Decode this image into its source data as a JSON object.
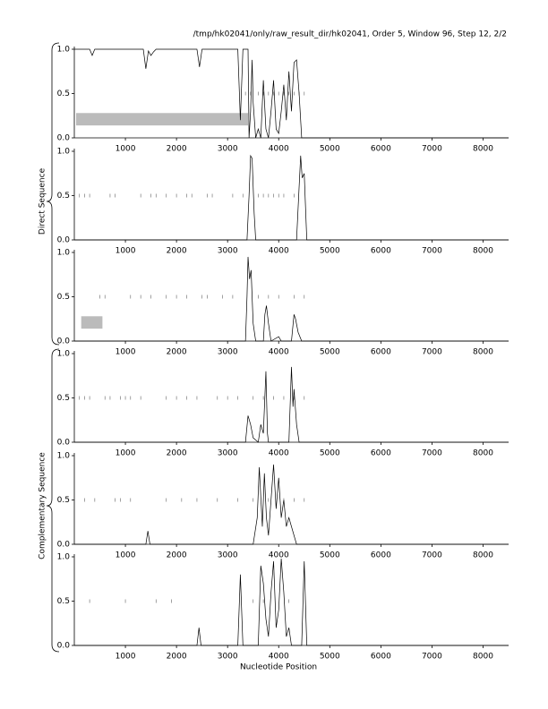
{
  "title": "/tmp/hk02041/only/raw_result_dir/hk02041, Order 5, Window 96, Step 12, 2/2",
  "xlabel": "Nucleotide Position",
  "group_labels": [
    "Direct Sequence",
    "Complementary Sequence"
  ],
  "chart_data": [
    {
      "type": "line",
      "color": "#000000",
      "xlim": [
        0,
        8500
      ],
      "ylim": [
        0,
        1
      ],
      "xticks": [
        1000,
        2000,
        3000,
        4000,
        5000,
        6000,
        7000,
        8000
      ],
      "yticks": [
        {
          "value": 0,
          "label": "0.0"
        },
        {
          "value": 0.5,
          "label": "0.5"
        },
        {
          "value": 1,
          "label": "1.0"
        }
      ],
      "x": [
        0,
        300,
        350,
        400,
        450,
        1350,
        1400,
        1450,
        1500,
        1550,
        1600,
        2400,
        2450,
        2500,
        3200,
        3250,
        3300,
        3400,
        3420,
        3450,
        3480,
        3500,
        3550,
        3600,
        3650,
        3700,
        3750,
        3800,
        3850,
        3900,
        3950,
        4000,
        4050,
        4100,
        4150,
        4200,
        4250,
        4300,
        4350,
        4400,
        4450,
        4500,
        8500
      ],
      "values": [
        1,
        1,
        0.93,
        1,
        1,
        1,
        0.78,
        0.98,
        0.93,
        0.97,
        1,
        1,
        0.8,
        1,
        1,
        0.2,
        1,
        1,
        0,
        0.3,
        0.88,
        0.4,
        0,
        0.1,
        0,
        0.65,
        0.1,
        0,
        0.3,
        0.65,
        0.1,
        0.05,
        0.3,
        0.6,
        0.2,
        0.75,
        0.3,
        0.85,
        0.88,
        0.5,
        0,
        0,
        0
      ],
      "markers": {
        "level": 0.5,
        "x": [
          3350,
          3450,
          3600,
          3700,
          3800,
          3900,
          4000,
          4100,
          4200,
          4300,
          4400,
          4500
        ]
      },
      "regions": [
        {
          "start": 0,
          "end": 3400,
          "low": 0.14,
          "high": 0.28
        }
      ]
    },
    {
      "type": "line",
      "color": "#000000",
      "xlim": [
        0,
        8500
      ],
      "ylim": [
        0,
        1
      ],
      "xticks": [
        1000,
        2000,
        3000,
        4000,
        5000,
        6000,
        7000,
        8000
      ],
      "yticks": [
        {
          "value": 0,
          "label": "0.0"
        },
        {
          "value": 0.5,
          "label": "0.5"
        },
        {
          "value": 1,
          "label": "1.0"
        }
      ],
      "x": [
        0,
        3380,
        3420,
        3450,
        3480,
        3520,
        3550,
        4350,
        4400,
        4430,
        4460,
        4500,
        4550,
        8500
      ],
      "values": [
        0,
        0,
        0.5,
        0.95,
        0.92,
        0.3,
        0,
        0,
        0.6,
        0.95,
        0.7,
        0.75,
        0,
        0
      ],
      "markers": {
        "level": 0.5,
        "x": [
          100,
          200,
          300,
          700,
          800,
          1300,
          1500,
          1600,
          1800,
          2000,
          2200,
          2300,
          2600,
          2700,
          3100,
          3300,
          3600,
          3700,
          3800,
          3900,
          4000,
          4100,
          4300
        ]
      },
      "regions": []
    },
    {
      "type": "line",
      "color": "#000000",
      "xlim": [
        0,
        8500
      ],
      "ylim": [
        0,
        1
      ],
      "xticks": [
        1000,
        2000,
        3000,
        4000,
        5000,
        6000,
        7000,
        8000
      ],
      "yticks": [
        {
          "value": 0,
          "label": "0.0"
        },
        {
          "value": 0.5,
          "label": "0.5"
        },
        {
          "value": 1,
          "label": "1.0"
        }
      ],
      "x": [
        0,
        3350,
        3380,
        3400,
        3430,
        3460,
        3500,
        3550,
        3700,
        3730,
        3760,
        3800,
        3850,
        4000,
        4050,
        4250,
        4300,
        4330,
        4380,
        4450,
        8500
      ],
      "values": [
        0,
        0,
        0.5,
        0.95,
        0.7,
        0.8,
        0.2,
        0,
        0,
        0.3,
        0.4,
        0.2,
        0,
        0.05,
        0,
        0,
        0.3,
        0.25,
        0.1,
        0,
        0
      ],
      "markers": {
        "level": 0.5,
        "x": [
          500,
          600,
          1100,
          1300,
          1500,
          1800,
          2000,
          2200,
          2500,
          2600,
          2900,
          3100,
          3600,
          3800,
          4000,
          4300,
          4500
        ]
      },
      "regions": [
        {
          "start": 100,
          "end": 550,
          "low": 0.14,
          "high": 0.28
        }
      ]
    },
    {
      "type": "line",
      "color": "#000000",
      "xlim": [
        0,
        8500
      ],
      "ylim": [
        0,
        1
      ],
      "xticks": [
        1000,
        2000,
        3000,
        4000,
        5000,
        6000,
        7000,
        8000
      ],
      "yticks": [
        {
          "value": 0,
          "label": "0.0"
        },
        {
          "value": 0.5,
          "label": "0.5"
        },
        {
          "value": 1,
          "label": "1.0"
        }
      ],
      "x": [
        0,
        3350,
        3400,
        3450,
        3500,
        3600,
        3650,
        3700,
        3750,
        3780,
        3800,
        3850,
        4200,
        4250,
        4280,
        4300,
        4350,
        4400,
        8500
      ],
      "values": [
        0,
        0,
        0.3,
        0.2,
        0.05,
        0,
        0.2,
        0.1,
        0.8,
        0.1,
        0,
        0,
        0,
        0.85,
        0.4,
        0.6,
        0.2,
        0,
        0
      ],
      "markers": {
        "level": 0.5,
        "x": [
          100,
          200,
          300,
          600,
          700,
          900,
          1000,
          1100,
          1300,
          1800,
          2000,
          2200,
          2400,
          2800,
          3000,
          3200,
          3500,
          3700,
          3900,
          4100,
          4300,
          4500
        ]
      },
      "regions": []
    },
    {
      "type": "line",
      "color": "#000000",
      "xlim": [
        0,
        8500
      ],
      "ylim": [
        0,
        1
      ],
      "xticks": [
        1000,
        2000,
        3000,
        4000,
        5000,
        6000,
        7000,
        8000
      ],
      "yticks": [
        {
          "value": 0,
          "label": "0.0"
        },
        {
          "value": 0.5,
          "label": "0.5"
        },
        {
          "value": 1,
          "label": "1.0"
        }
      ],
      "x": [
        0,
        1400,
        1440,
        1480,
        3500,
        3580,
        3620,
        3680,
        3720,
        3760,
        3800,
        3850,
        3900,
        3950,
        4000,
        4050,
        4100,
        4150,
        4200,
        4300,
        4350,
        8500
      ],
      "values": [
        0,
        0,
        0.15,
        0,
        0,
        0.3,
        0.87,
        0.2,
        0.8,
        0.3,
        0.1,
        0.5,
        0.9,
        0.4,
        0.75,
        0.3,
        0.5,
        0.2,
        0.3,
        0.1,
        0,
        0
      ],
      "markers": {
        "level": 0.5,
        "x": [
          200,
          400,
          800,
          900,
          1100,
          1800,
          2100,
          2400,
          2800,
          3200,
          3500,
          3800,
          4100,
          4300,
          4500
        ]
      },
      "regions": []
    },
    {
      "type": "line",
      "color": "#000000",
      "xlim": [
        0,
        8500
      ],
      "ylim": [
        0,
        1
      ],
      "xticks": [
        1000,
        2000,
        3000,
        4000,
        5000,
        6000,
        7000,
        8000
      ],
      "yticks": [
        {
          "value": 0,
          "label": "0.0"
        },
        {
          "value": 0.5,
          "label": "0.5"
        },
        {
          "value": 1,
          "label": "1.0"
        }
      ],
      "x": [
        0,
        2400,
        2440,
        2480,
        3200,
        3250,
        3300,
        3600,
        3650,
        3700,
        3750,
        3800,
        3850,
        3900,
        3950,
        4000,
        4050,
        4100,
        4150,
        4200,
        4250,
        4450,
        4500,
        4550,
        8500
      ],
      "values": [
        0,
        0,
        0.2,
        0,
        0,
        0.8,
        0,
        0,
        0.9,
        0.7,
        0.3,
        0.1,
        0.6,
        0.95,
        0.2,
        0.4,
        0.98,
        0.6,
        0.1,
        0.2,
        0,
        0,
        0.95,
        0,
        0
      ],
      "markers": {
        "level": 0.5,
        "x": [
          300,
          1000,
          1600,
          1900,
          3500,
          3700,
          4200
        ]
      },
      "regions": []
    }
  ]
}
